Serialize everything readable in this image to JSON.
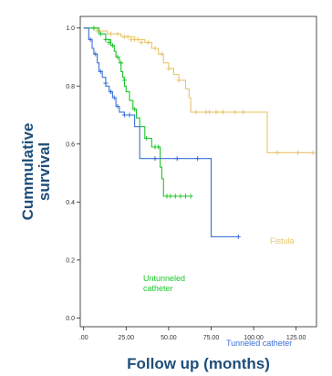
{
  "chart_data": {
    "type": "line",
    "subtype": "kaplan-meier-step",
    "title": "",
    "xlabel": "Follow up (months)",
    "ylabel_lines": [
      "Cummulative",
      "survival"
    ],
    "xlim": [
      -2,
      137
    ],
    "ylim": [
      -0.03,
      1.04
    ],
    "x_ticks": [
      0,
      25,
      50,
      75,
      100,
      125
    ],
    "x_tick_labels": [
      ".00",
      "25.00",
      "50.00",
      "75.00",
      "100.00",
      "125.00"
    ],
    "y_ticks": [
      0.0,
      0.2,
      0.4,
      0.6,
      0.8,
      1.0
    ],
    "y_tick_labels": [
      "0.0",
      "0.2",
      "0.4",
      "0.6",
      "0.8",
      "1.0"
    ],
    "grid": false,
    "series": [
      {
        "name": "Fistula",
        "color": "#e8c56a",
        "label_lines": [
          "Fistula"
        ],
        "steps": [
          [
            0,
            1.0
          ],
          [
            8,
            0.99
          ],
          [
            14,
            0.98
          ],
          [
            22,
            0.97
          ],
          [
            30,
            0.96
          ],
          [
            36,
            0.95
          ],
          [
            40,
            0.93
          ],
          [
            44,
            0.91
          ],
          [
            47,
            0.88
          ],
          [
            50,
            0.86
          ],
          [
            53,
            0.84
          ],
          [
            56,
            0.82
          ],
          [
            60,
            0.79
          ],
          [
            62,
            0.76
          ],
          [
            63,
            0.71
          ],
          [
            108,
            0.57
          ],
          [
            135,
            0.57
          ]
        ],
        "censored": [
          [
            8,
            0.99
          ],
          [
            16,
            0.98
          ],
          [
            20,
            0.98
          ],
          [
            24,
            0.97
          ],
          [
            26,
            0.97
          ],
          [
            28,
            0.96
          ],
          [
            30,
            0.96
          ],
          [
            32,
            0.96
          ],
          [
            34,
            0.95
          ],
          [
            38,
            0.95
          ],
          [
            42,
            0.93
          ],
          [
            46,
            0.91
          ],
          [
            50,
            0.86
          ],
          [
            56,
            0.82
          ],
          [
            66,
            0.71
          ],
          [
            72,
            0.71
          ],
          [
            74,
            0.71
          ],
          [
            78,
            0.71
          ],
          [
            82,
            0.71
          ],
          [
            89,
            0.71
          ],
          [
            94,
            0.71
          ],
          [
            114,
            0.57
          ],
          [
            126,
            0.57
          ],
          [
            135,
            0.57
          ]
        ]
      },
      {
        "name": "Untunneled catheter",
        "color": "#1ec42a",
        "label_lines": [
          "Untunneled",
          "catheter"
        ],
        "steps": [
          [
            0,
            1.0
          ],
          [
            9,
            0.98
          ],
          [
            13,
            0.96
          ],
          [
            16,
            0.94
          ],
          [
            18,
            0.92
          ],
          [
            19,
            0.9
          ],
          [
            21,
            0.88
          ],
          [
            22,
            0.85
          ],
          [
            23,
            0.83
          ],
          [
            24,
            0.8
          ],
          [
            25,
            0.78
          ],
          [
            27,
            0.75
          ],
          [
            29,
            0.72
          ],
          [
            31,
            0.69
          ],
          [
            33,
            0.66
          ],
          [
            36,
            0.62
          ],
          [
            40,
            0.59
          ],
          [
            45,
            0.52
          ],
          [
            46,
            0.48
          ],
          [
            47,
            0.42
          ],
          [
            63,
            0.42
          ]
        ],
        "censored": [
          [
            6,
            1.0
          ],
          [
            10,
            0.98
          ],
          [
            13,
            0.96
          ],
          [
            15,
            0.95
          ],
          [
            17,
            0.94
          ],
          [
            20,
            0.9
          ],
          [
            22,
            0.88
          ],
          [
            24,
            0.82
          ],
          [
            30,
            0.72
          ],
          [
            37,
            0.62
          ],
          [
            42,
            0.59
          ],
          [
            44,
            0.59
          ],
          [
            49,
            0.42
          ],
          [
            51,
            0.42
          ],
          [
            54,
            0.42
          ],
          [
            57,
            0.42
          ],
          [
            60,
            0.42
          ],
          [
            63,
            0.42
          ]
        ]
      },
      {
        "name": "Tunneled catheter",
        "color": "#3a6fd8",
        "label_lines": [
          "Tunneled catheter"
        ],
        "steps": [
          [
            0,
            1.0
          ],
          [
            3,
            0.96
          ],
          [
            5,
            0.93
          ],
          [
            6,
            0.91
          ],
          [
            8,
            0.88
          ],
          [
            9,
            0.85
          ],
          [
            11,
            0.83
          ],
          [
            13,
            0.8
          ],
          [
            15,
            0.78
          ],
          [
            17,
            0.76
          ],
          [
            19,
            0.73
          ],
          [
            21,
            0.71
          ],
          [
            24,
            0.7
          ],
          [
            30,
            0.66
          ],
          [
            33,
            0.55
          ],
          [
            75,
            0.28
          ],
          [
            91,
            0.28
          ]
        ],
        "censored": [
          [
            4,
            0.96
          ],
          [
            7,
            0.91
          ],
          [
            10,
            0.85
          ],
          [
            13,
            0.81
          ],
          [
            16,
            0.78
          ],
          [
            18,
            0.76
          ],
          [
            20,
            0.73
          ],
          [
            24,
            0.7
          ],
          [
            27,
            0.7
          ],
          [
            42,
            0.55
          ],
          [
            55,
            0.55
          ],
          [
            67,
            0.55
          ],
          [
            91,
            0.28
          ]
        ]
      }
    ]
  }
}
